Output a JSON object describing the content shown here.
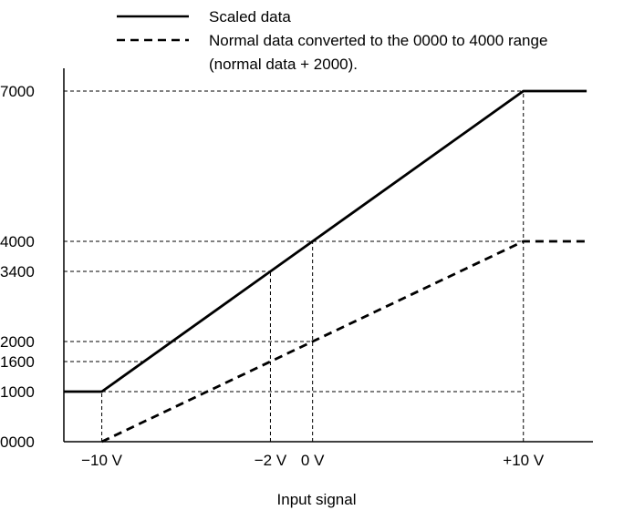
{
  "chart_data": {
    "type": "line",
    "xlabel": "Input signal",
    "ylabel": "",
    "x_ticks": [
      {
        "value": -10,
        "label": "−10 V"
      },
      {
        "value": -2,
        "label": "−2 V"
      },
      {
        "value": 0,
        "label": "0 V"
      },
      {
        "value": 10,
        "label": "+10 V"
      }
    ],
    "y_ticks": [
      {
        "value": 7000,
        "label": "7000"
      },
      {
        "value": 4000,
        "label": "4000"
      },
      {
        "value": 3400,
        "label": "3400"
      },
      {
        "value": 2000,
        "label": "2000"
      },
      {
        "value": 1600,
        "label": "1600"
      },
      {
        "value": 1000,
        "label": "1000"
      },
      {
        "value": 0,
        "label": "0000"
      }
    ],
    "xlim": [
      -11.8,
      13.3
    ],
    "ylim": [
      0,
      7000
    ],
    "grid": "dashed reference lines",
    "legend": {
      "placement": "top-center",
      "items": [
        {
          "series": 0,
          "style": "solid",
          "label": "Scaled data"
        },
        {
          "series": 1,
          "style": "dashed",
          "label": "Normal data converted to the 0000 to 4000 range",
          "label2": "(normal data + 2000)."
        }
      ]
    },
    "series": [
      {
        "name": "Scaled data",
        "style": "solid",
        "x": [
          -11.8,
          -10,
          10,
          13.0
        ],
        "y": [
          1000,
          1000,
          7000,
          7000
        ]
      },
      {
        "name": "Normal data converted to the 0000 to 4000 range (normal data + 2000).",
        "style": "dashed",
        "x": [
          -10,
          10,
          13.0
        ],
        "y": [
          0,
          4000,
          4000
        ]
      }
    ],
    "reference_lines": {
      "horizontal": [
        {
          "y": 7000,
          "x_end": 10
        },
        {
          "y": 4000,
          "x_end": 10
        },
        {
          "y": 3400,
          "x_end": -2
        },
        {
          "y": 2000,
          "x_end": 0
        },
        {
          "y": 1600,
          "x_end": -8
        },
        {
          "y": 1000,
          "x_end": 10
        }
      ],
      "vertical": [
        {
          "x": -10,
          "y_end": 1000
        },
        {
          "x": -2,
          "y_end": 3400
        },
        {
          "x": 0,
          "y_end": 4000
        },
        {
          "x": 10,
          "y_end": 7000
        }
      ]
    }
  }
}
